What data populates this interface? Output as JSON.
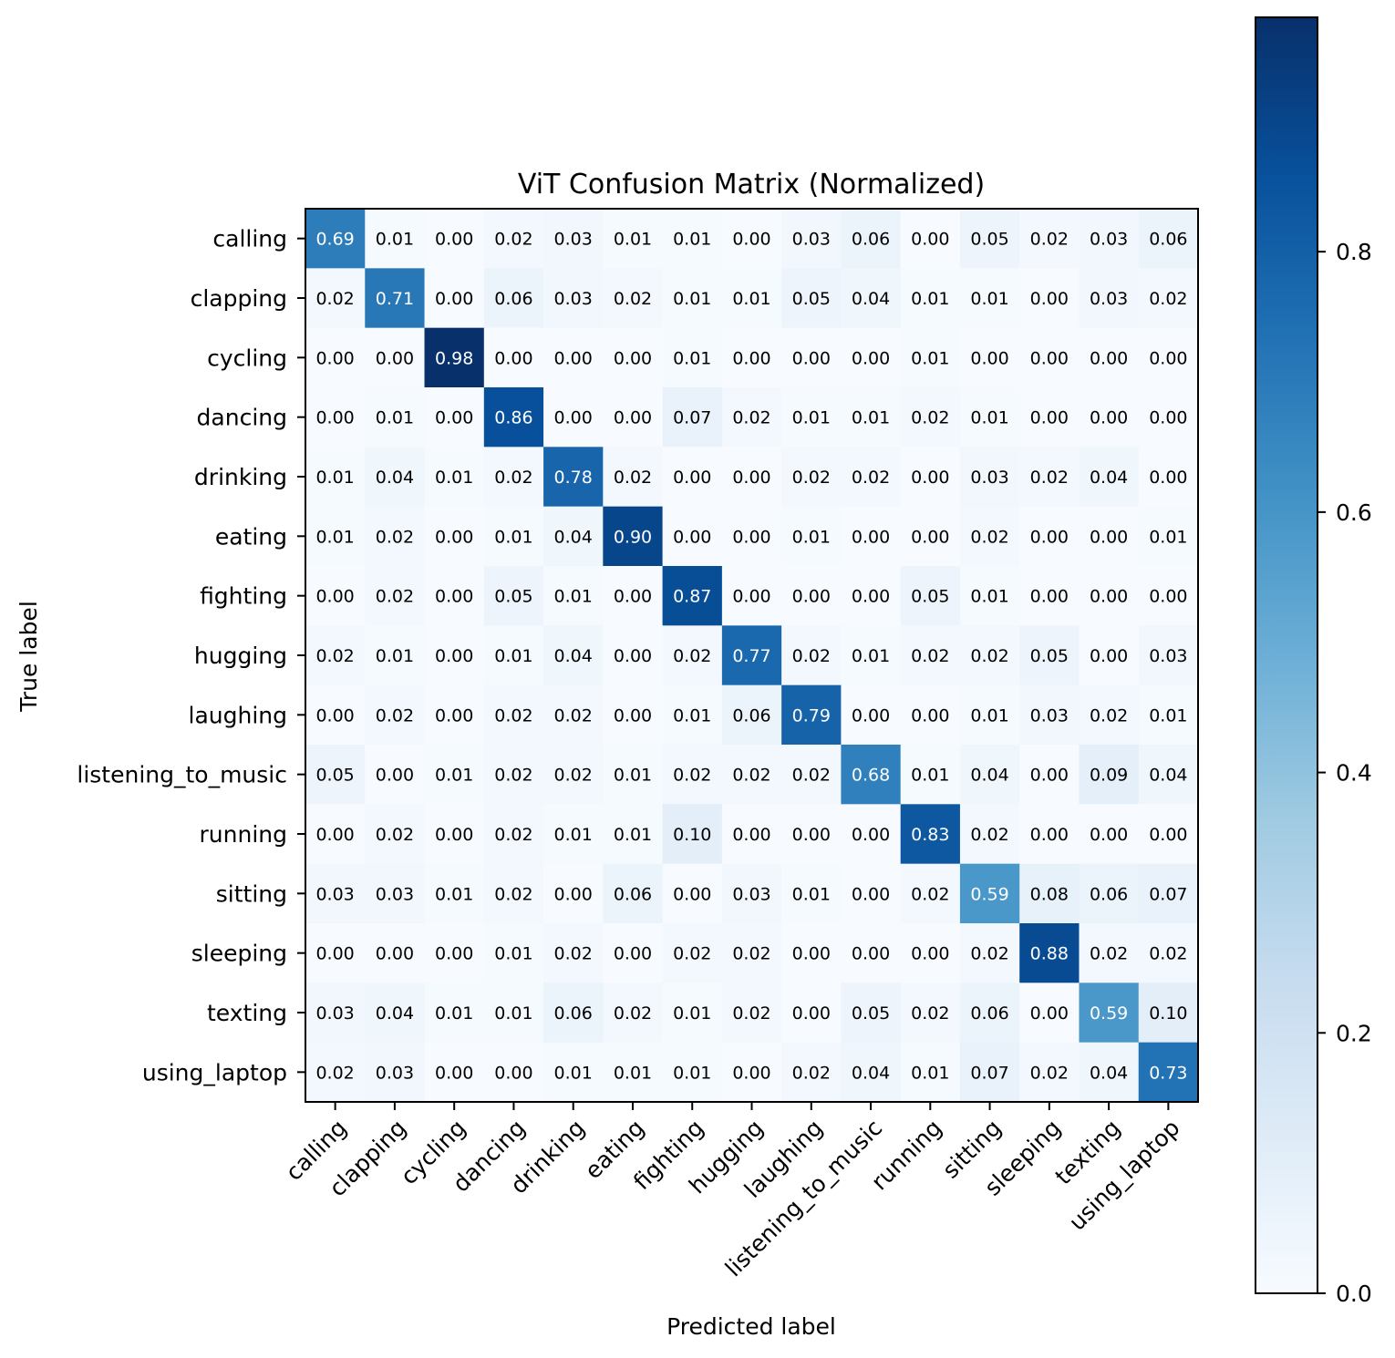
{
  "chart_data": {
    "type": "heatmap",
    "title": "ViT Confusion Matrix (Normalized)",
    "xlabel": "Predicted label",
    "ylabel": "True label",
    "labels": [
      "calling",
      "clapping",
      "cycling",
      "dancing",
      "drinking",
      "eating",
      "fighting",
      "hugging",
      "laughing",
      "listening_to_music",
      "running",
      "sitting",
      "sleeping",
      "texting",
      "using_laptop"
    ],
    "values": [
      [
        0.69,
        0.01,
        0.0,
        0.02,
        0.03,
        0.01,
        0.01,
        0.0,
        0.03,
        0.06,
        0.0,
        0.05,
        0.02,
        0.03,
        0.06
      ],
      [
        0.02,
        0.71,
        0.0,
        0.06,
        0.03,
        0.02,
        0.01,
        0.01,
        0.05,
        0.04,
        0.01,
        0.01,
        0.0,
        0.03,
        0.02
      ],
      [
        0.0,
        0.0,
        0.98,
        0.0,
        0.0,
        0.0,
        0.01,
        0.0,
        0.0,
        0.0,
        0.01,
        0.0,
        0.0,
        0.0,
        0.0
      ],
      [
        0.0,
        0.01,
        0.0,
        0.86,
        0.0,
        0.0,
        0.07,
        0.02,
        0.01,
        0.01,
        0.02,
        0.01,
        0.0,
        0.0,
        0.0
      ],
      [
        0.01,
        0.04,
        0.01,
        0.02,
        0.78,
        0.02,
        0.0,
        0.0,
        0.02,
        0.02,
        0.0,
        0.03,
        0.02,
        0.04,
        0.0
      ],
      [
        0.01,
        0.02,
        0.0,
        0.01,
        0.04,
        0.9,
        0.0,
        0.0,
        0.01,
        0.0,
        0.0,
        0.02,
        0.0,
        0.0,
        0.01
      ],
      [
        0.0,
        0.02,
        0.0,
        0.05,
        0.01,
        0.0,
        0.87,
        0.0,
        0.0,
        0.0,
        0.05,
        0.01,
        0.0,
        0.0,
        0.0
      ],
      [
        0.02,
        0.01,
        0.0,
        0.01,
        0.04,
        0.0,
        0.02,
        0.77,
        0.02,
        0.01,
        0.02,
        0.02,
        0.05,
        0.0,
        0.03
      ],
      [
        0.0,
        0.02,
        0.0,
        0.02,
        0.02,
        0.0,
        0.01,
        0.06,
        0.79,
        0.0,
        0.0,
        0.01,
        0.03,
        0.02,
        0.01
      ],
      [
        0.05,
        0.0,
        0.01,
        0.02,
        0.02,
        0.01,
        0.02,
        0.02,
        0.02,
        0.68,
        0.01,
        0.04,
        0.0,
        0.09,
        0.04
      ],
      [
        0.0,
        0.02,
        0.0,
        0.02,
        0.01,
        0.01,
        0.1,
        0.0,
        0.0,
        0.0,
        0.83,
        0.02,
        0.0,
        0.0,
        0.0
      ],
      [
        0.03,
        0.03,
        0.01,
        0.02,
        0.0,
        0.06,
        0.0,
        0.03,
        0.01,
        0.0,
        0.02,
        0.59,
        0.08,
        0.06,
        0.07
      ],
      [
        0.0,
        0.0,
        0.0,
        0.01,
        0.02,
        0.0,
        0.02,
        0.02,
        0.0,
        0.0,
        0.0,
        0.02,
        0.88,
        0.02,
        0.02
      ],
      [
        0.03,
        0.04,
        0.01,
        0.01,
        0.06,
        0.02,
        0.01,
        0.02,
        0.0,
        0.05,
        0.02,
        0.06,
        0.0,
        0.59,
        0.1
      ],
      [
        0.02,
        0.03,
        0.0,
        0.0,
        0.01,
        0.01,
        0.01,
        0.0,
        0.02,
        0.04,
        0.01,
        0.07,
        0.02,
        0.04,
        0.73
      ]
    ],
    "colormap": "Blues",
    "vmin": 0.0,
    "vmax": 0.98,
    "colorbar_ticks": [
      0.0,
      0.2,
      0.4,
      0.6,
      0.8
    ],
    "colorbar_tick_labels": [
      "0.0",
      "0.2",
      "0.4",
      "0.6",
      "0.8"
    ],
    "grid": false
  }
}
